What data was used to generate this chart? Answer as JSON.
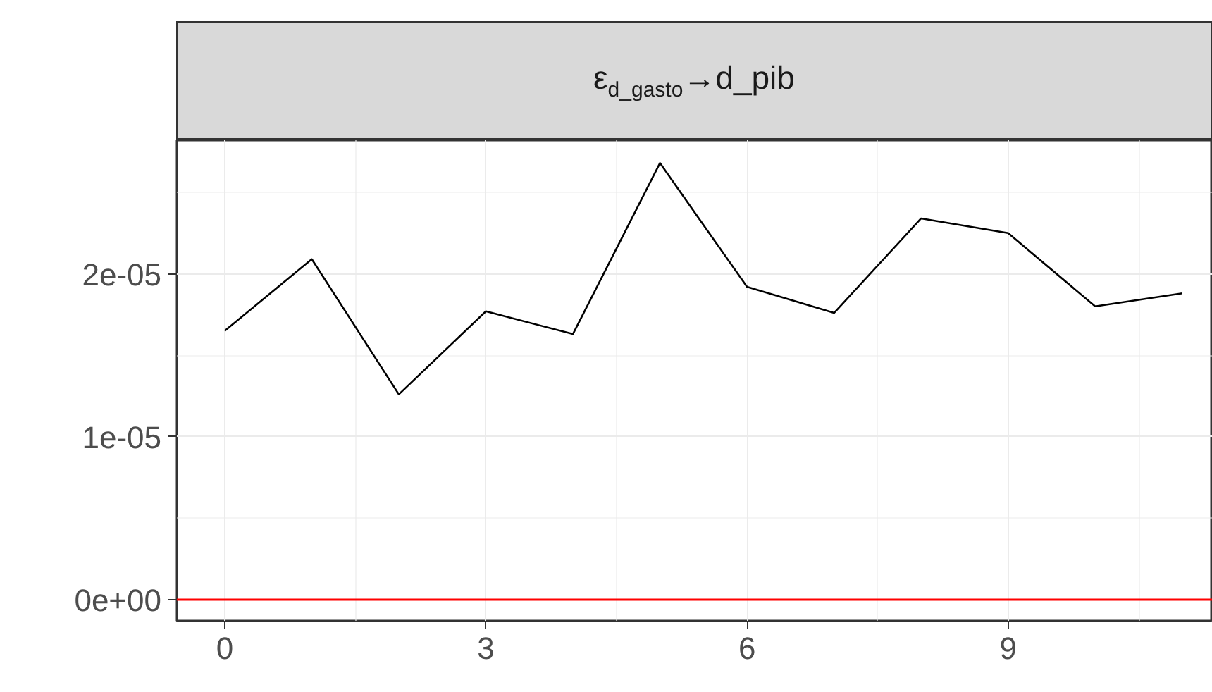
{
  "chart_data": {
    "type": "line",
    "title": "ε$_{d_gasto}$→d_pib",
    "x": [
      0,
      1,
      2,
      3,
      4,
      5,
      6,
      7,
      8,
      9,
      10,
      11
    ],
    "series": [
      {
        "color": "#000000",
        "values": [
          1.65e-05,
          2.09e-05,
          1.26e-05,
          1.77e-05,
          1.63e-05,
          2.68e-05,
          1.92e-05,
          1.76e-05,
          2.34e-05,
          2.25e-05,
          1.8e-05,
          1.88e-05
        ]
      }
    ],
    "xlim": [
      -0.55,
      11.35
    ],
    "xticks": [
      0,
      3,
      6,
      9
    ],
    "ylim": [
      -1.3e-06,
      2.82e-05
    ],
    "yticks": [
      {
        "value": 0,
        "label": "0e+00"
      },
      {
        "value": 1e-05,
        "label": "1e-05"
      },
      {
        "value": 2e-05,
        "label": "2e-05"
      }
    ],
    "ref_lines": [
      {
        "axis": "y",
        "value": 0,
        "color": "#ff0000"
      }
    ],
    "grid": true,
    "marker": "none",
    "line_style": "solid"
  }
}
